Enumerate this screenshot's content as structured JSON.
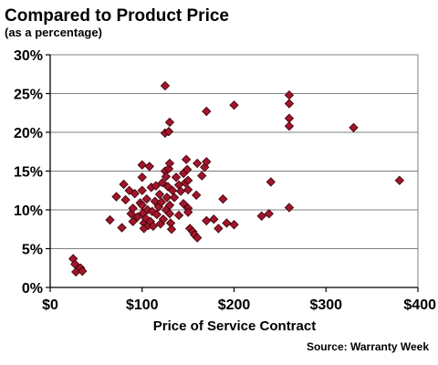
{
  "chart_data": {
    "type": "scatter",
    "title": "Compared to Product Price",
    "subtitle": "(as a percentage)",
    "xlabel": "Price of Service Contract",
    "ylabel": "",
    "source": "Source: Warranty Week",
    "xlim": [
      0,
      400
    ],
    "ylim": [
      0,
      30
    ],
    "x_ticks": [
      0,
      100,
      200,
      300,
      400
    ],
    "x_tick_labels": [
      "$0",
      "$100",
      "$200",
      "$300",
      "$400"
    ],
    "y_ticks": [
      0,
      5,
      10,
      15,
      20,
      25,
      30
    ],
    "y_tick_labels": [
      "0%",
      "5%",
      "10%",
      "15%",
      "20%",
      "25%",
      "30%"
    ],
    "grid": "horizontal",
    "marker_color": "#a0152a",
    "marker_shape": "diamond",
    "points": [
      {
        "x": 25,
        "y": 3.7
      },
      {
        "x": 27,
        "y": 3.0
      },
      {
        "x": 28,
        "y": 2.0
      },
      {
        "x": 33,
        "y": 2.5
      },
      {
        "x": 35,
        "y": 2.1
      },
      {
        "x": 65,
        "y": 8.7
      },
      {
        "x": 72,
        "y": 11.7
      },
      {
        "x": 78,
        "y": 7.7
      },
      {
        "x": 80,
        "y": 13.3
      },
      {
        "x": 82,
        "y": 11.3
      },
      {
        "x": 86,
        "y": 12.5
      },
      {
        "x": 88,
        "y": 9.5
      },
      {
        "x": 90,
        "y": 10.2
      },
      {
        "x": 90,
        "y": 8.5
      },
      {
        "x": 92,
        "y": 12.1
      },
      {
        "x": 95,
        "y": 9.1
      },
      {
        "x": 98,
        "y": 10.9
      },
      {
        "x": 100,
        "y": 15.8
      },
      {
        "x": 100,
        "y": 14.2
      },
      {
        "x": 100,
        "y": 12.5
      },
      {
        "x": 100,
        "y": 10.6
      },
      {
        "x": 101,
        "y": 9.6
      },
      {
        "x": 102,
        "y": 8.3
      },
      {
        "x": 102,
        "y": 7.6
      },
      {
        "x": 104,
        "y": 8.9
      },
      {
        "x": 105,
        "y": 11.4
      },
      {
        "x": 106,
        "y": 10.0
      },
      {
        "x": 107,
        "y": 8.0
      },
      {
        "x": 108,
        "y": 15.6
      },
      {
        "x": 109,
        "y": 8.5
      },
      {
        "x": 110,
        "y": 12.9
      },
      {
        "x": 111,
        "y": 9.8
      },
      {
        "x": 112,
        "y": 7.9
      },
      {
        "x": 114,
        "y": 11.1
      },
      {
        "x": 115,
        "y": 13.1
      },
      {
        "x": 116,
        "y": 9.4
      },
      {
        "x": 118,
        "y": 10.4
      },
      {
        "x": 119,
        "y": 12.0
      },
      {
        "x": 120,
        "y": 8.2
      },
      {
        "x": 121,
        "y": 11.0
      },
      {
        "x": 122,
        "y": 13.5
      },
      {
        "x": 123,
        "y": 8.8
      },
      {
        "x": 125,
        "y": 26.0
      },
      {
        "x": 125,
        "y": 19.9
      },
      {
        "x": 125,
        "y": 15.0
      },
      {
        "x": 126,
        "y": 14.3
      },
      {
        "x": 126,
        "y": 10.0
      },
      {
        "x": 127,
        "y": 11.6
      },
      {
        "x": 128,
        "y": 13.0
      },
      {
        "x": 129,
        "y": 20.1
      },
      {
        "x": 129,
        "y": 15.3
      },
      {
        "x": 130,
        "y": 21.3
      },
      {
        "x": 130,
        "y": 16.0
      },
      {
        "x": 130,
        "y": 10.6
      },
      {
        "x": 130,
        "y": 9.5
      },
      {
        "x": 131,
        "y": 8.3
      },
      {
        "x": 132,
        "y": 7.5
      },
      {
        "x": 133,
        "y": 12.5
      },
      {
        "x": 135,
        "y": 11.6
      },
      {
        "x": 137,
        "y": 14.2
      },
      {
        "x": 140,
        "y": 13.2
      },
      {
        "x": 140,
        "y": 9.3
      },
      {
        "x": 142,
        "y": 12.4
      },
      {
        "x": 145,
        "y": 14.7
      },
      {
        "x": 145,
        "y": 10.8
      },
      {
        "x": 147,
        "y": 13.5
      },
      {
        "x": 148,
        "y": 16.5
      },
      {
        "x": 149,
        "y": 15.2
      },
      {
        "x": 150,
        "y": 13.8
      },
      {
        "x": 150,
        "y": 12.6
      },
      {
        "x": 150,
        "y": 10.2
      },
      {
        "x": 150,
        "y": 9.7
      },
      {
        "x": 152,
        "y": 7.6
      },
      {
        "x": 155,
        "y": 7.2
      },
      {
        "x": 157,
        "y": 6.8
      },
      {
        "x": 159,
        "y": 11.9
      },
      {
        "x": 160,
        "y": 16.0
      },
      {
        "x": 160,
        "y": 6.4
      },
      {
        "x": 165,
        "y": 14.4
      },
      {
        "x": 168,
        "y": 15.5
      },
      {
        "x": 170,
        "y": 22.7
      },
      {
        "x": 170,
        "y": 16.2
      },
      {
        "x": 170,
        "y": 8.6
      },
      {
        "x": 178,
        "y": 8.8
      },
      {
        "x": 183,
        "y": 7.6
      },
      {
        "x": 188,
        "y": 11.4
      },
      {
        "x": 192,
        "y": 8.3
      },
      {
        "x": 200,
        "y": 23.5
      },
      {
        "x": 200,
        "y": 8.1
      },
      {
        "x": 230,
        "y": 9.2
      },
      {
        "x": 238,
        "y": 9.5
      },
      {
        "x": 240,
        "y": 13.6
      },
      {
        "x": 260,
        "y": 24.8
      },
      {
        "x": 260,
        "y": 23.7
      },
      {
        "x": 260,
        "y": 21.8
      },
      {
        "x": 260,
        "y": 20.8
      },
      {
        "x": 260,
        "y": 10.3
      },
      {
        "x": 330,
        "y": 20.6
      },
      {
        "x": 380,
        "y": 13.8
      }
    ]
  }
}
